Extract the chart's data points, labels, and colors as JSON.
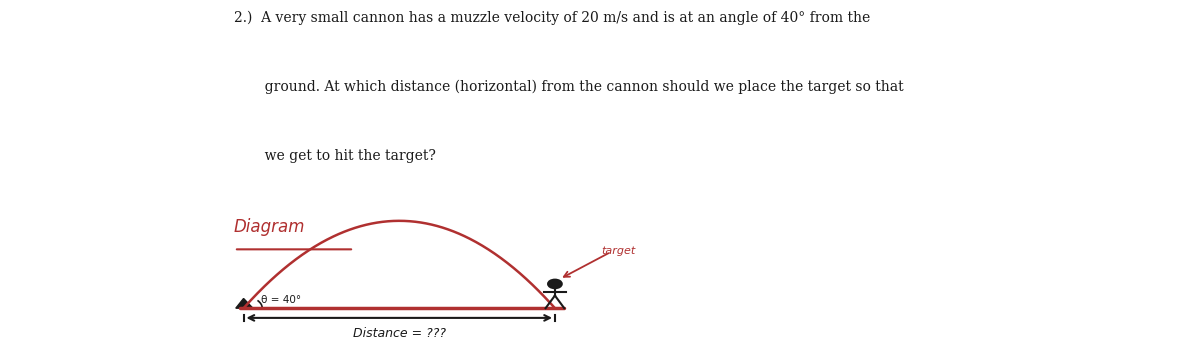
{
  "background_color": "#ffffff",
  "text_color": "#1a1a1a",
  "red_color": "#b03030",
  "dark_color": "#1a1a1a",
  "problem_text_line1": "2.)  A very small cannon has a muzzle velocity of 20 m/s and is at an angle of 40° from the",
  "problem_text_line2": "       ground. At which distance (horizontal) from the cannon should we place the target so that",
  "problem_text_line3": "       we get to hit the target?",
  "diagram_label": "Diagram",
  "theta_label": "θ = 40°",
  "target_label": "target",
  "distance_label": "Distance = ???",
  "fig_width": 12.0,
  "fig_height": 3.64,
  "dpi": 100,
  "ground_y_data": 1.0,
  "cannon_x_data": 0.0,
  "target_x_data": 10.0,
  "peak_height": 4.5,
  "xlim": [
    -0.5,
    18.0
  ],
  "ylim": [
    -1.5,
    7.5
  ]
}
